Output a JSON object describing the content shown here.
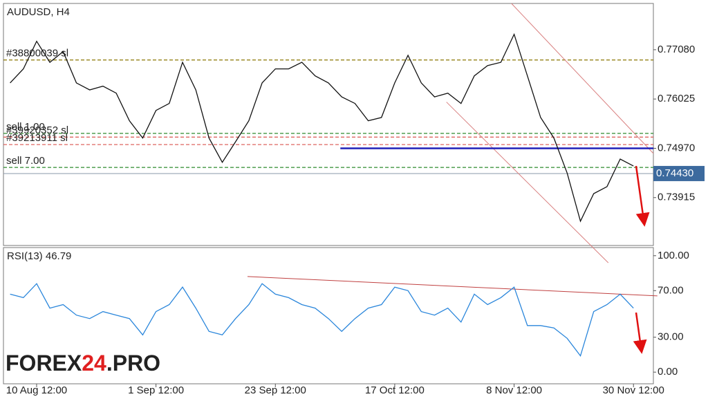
{
  "logo": [
    "FOREX",
    "24",
    ".PRO"
  ],
  "chart_data": [
    {
      "type": "line",
      "title": "AUDUSD, H4",
      "color": "#111111",
      "categories": [
        null,
        null,
        "10 Aug 12:00",
        null,
        null,
        null,
        null,
        null,
        null,
        null,
        null,
        "1 Sep 12:00",
        null,
        null,
        null,
        null,
        null,
        null,
        null,
        null,
        "23 Sep 12:00",
        null,
        null,
        null,
        null,
        null,
        null,
        null,
        null,
        "17 Oct 12:00",
        null,
        null,
        null,
        null,
        null,
        null,
        null,
        null,
        "8 Nov 12:00",
        null,
        null,
        null,
        null,
        null,
        null,
        null,
        null,
        "30 Nov 12:00",
        null
      ],
      "values": [
        0.7637,
        0.7667,
        0.7726,
        0.7681,
        0.7704,
        0.7637,
        0.7622,
        0.763,
        0.7615,
        0.7556,
        0.7519,
        0.7578,
        0.7593,
        0.7681,
        0.7622,
        0.7519,
        0.7467,
        0.7511,
        0.7556,
        0.7637,
        0.7667,
        0.7667,
        0.7681,
        0.7652,
        0.7637,
        0.7607,
        0.7593,
        0.7556,
        0.7563,
        0.7637,
        0.7696,
        0.7637,
        0.7607,
        0.7615,
        0.7593,
        0.7652,
        0.7674,
        0.7681,
        0.7741,
        0.7652,
        0.7563,
        0.7519,
        0.7444,
        0.7341,
        0.74,
        0.7415,
        0.7474,
        0.7459,
        null
      ],
      "ylim": [
        0.7289,
        0.7807
      ],
      "yticks": [
        {
          "value": 0.7708,
          "label": "0.77080"
        },
        {
          "value": 0.76025,
          "label": "0.76025"
        },
        {
          "value": 0.7497,
          "label": "0.74970"
        },
        {
          "value": 0.73915,
          "label": "0.73915"
        }
      ],
      "levels": [
        {
          "label": "#38800039 sl",
          "value": 0.7686,
          "color": "#8b7500"
        },
        {
          "label": "sell 1.00",
          "value": 0.7529,
          "color": "#2e8b2e"
        },
        {
          "label": "#39920352 sl",
          "value": 0.7521,
          "color": "#d9534f"
        },
        {
          "label": "#39213911 sl",
          "value": 0.7505,
          "color": "#d9534f"
        },
        {
          "label": "sell 7.00",
          "value": 0.7456,
          "color": "#2e8b2e"
        }
      ],
      "current": {
        "value": 0.7443,
        "label": "0.74430"
      },
      "trendlines": [
        {
          "from": [
            37.8,
            0.7807
          ],
          "to": [
            48.5,
            0.7486
          ],
          "color": "#d98080",
          "width": 1
        },
        {
          "from": [
            32.9,
            0.7596
          ],
          "to": [
            45.1,
            0.7252
          ],
          "color": "#d98080",
          "width": 1
        },
        {
          "from": [
            24.9,
            0.7497
          ],
          "to": [
            48.5,
            0.7497
          ],
          "color": "#1f1fb8",
          "width": 2.5
        }
      ]
    },
    {
      "type": "line",
      "title": "RSI(13) 46.79",
      "color": "#2a86db",
      "values": [
        67,
        64,
        76,
        55,
        58,
        49,
        46,
        52,
        49,
        46,
        32,
        52,
        58,
        73,
        55,
        35,
        32,
        46,
        58,
        76,
        67,
        64,
        58,
        55,
        46,
        35,
        46,
        55,
        58,
        73,
        70,
        52,
        49,
        55,
        43,
        67,
        58,
        64,
        73,
        40,
        40,
        38,
        29,
        14,
        52,
        58,
        67,
        55,
        null
      ],
      "ylim": [
        -10,
        107
      ],
      "yticks": [
        {
          "value": 100,
          "label": "100.00"
        },
        {
          "value": 70,
          "label": "70.00"
        },
        {
          "value": 30,
          "label": "30.00"
        },
        {
          "value": 0,
          "label": "0.00"
        }
      ],
      "trendlines": [
        {
          "from": [
            17.9,
            82.1
          ],
          "to": [
            48.8,
            65.5
          ],
          "color": "#c04040",
          "width": 1
        }
      ]
    }
  ]
}
